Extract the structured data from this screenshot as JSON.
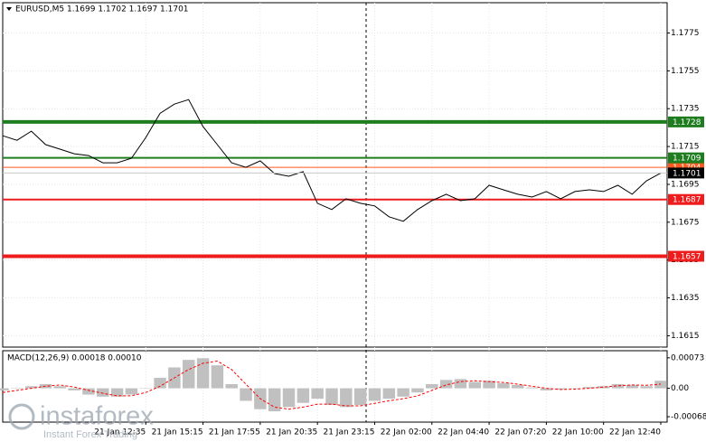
{
  "chart_data": [
    {
      "type": "line",
      "title": "EURUSD,M5  1.1699 1.1702 1.1697 1.1701",
      "categories": [
        null,
        null,
        null,
        null,
        null,
        null,
        null,
        null,
        null,
        null,
        "21 Jan 12:35",
        null,
        null,
        null,
        "21 Jan 15:15",
        null,
        null,
        null,
        "21 Jan 17:55",
        null,
        null,
        null,
        "21 Jan 20:35",
        null,
        null,
        null,
        "21 Jan 23:15",
        null,
        null,
        null,
        "22 Jan 02:00",
        null,
        null,
        null,
        "22 Jan 04:40",
        null,
        null,
        null,
        "22 Jan 07:20",
        null,
        null,
        null,
        "22 Jan 10:00",
        null,
        null,
        null,
        "22 Jan 12:40"
      ],
      "values": [
        1.17207,
        1.17183,
        1.17231,
        1.1716,
        1.17136,
        1.17112,
        1.17102,
        1.17064,
        1.17064,
        1.17088,
        1.17198,
        1.17326,
        1.17374,
        1.17398,
        1.17255,
        1.1716,
        1.17064,
        1.1704,
        1.17074,
        1.17007,
        1.16993,
        1.17017,
        1.1685,
        1.16817,
        1.16874,
        1.1685,
        1.16836,
        1.16779,
        1.16755,
        1.16817,
        1.16864,
        1.16898,
        1.16864,
        1.16874,
        1.16945,
        1.16921,
        1.16898,
        1.16883,
        1.16912,
        1.16874,
        1.16912,
        1.16921,
        1.16912,
        1.16945,
        1.16898,
        1.16969,
        1.1701
      ],
      "color": "#000000",
      "ylim": [
        1.1609,
        1.1791
      ],
      "yticks": [
        1.1775,
        1.1755,
        1.1735,
        1.1715,
        1.1695,
        1.1675,
        1.1655,
        1.1635,
        1.1615
      ],
      "grid": true,
      "levels": [
        {
          "value": 1.1704,
          "color": "#ff5a1e"
        },
        {
          "value": 1.1728,
          "color": "#1e7d1e"
        },
        {
          "value": 1.1709,
          "color": "#1e7d1e"
        },
        {
          "value": 1.1687,
          "color": "#ee1c1c"
        },
        {
          "value": 1.1657,
          "color": "#ee1c1c"
        }
      ],
      "last_price": 1.1701
    },
    {
      "type": "macd",
      "title": "MACD(12,26,9) 0.00018 0.00010",
      "values": [
        -5e-05,
        0,
        5e-05,
        0.0001,
        5e-05,
        -5e-05,
        -0.00015,
        -0.0002,
        -0.0002,
        -0.00015,
        0,
        0.00025,
        0.0005,
        0.00068,
        0.00072,
        0.00055,
        0.0001,
        -0.0003,
        -0.0005,
        -0.00055,
        -0.00045,
        -0.00035,
        -0.00025,
        -0.0004,
        -0.00045,
        -0.0004,
        -0.0003,
        -0.00025,
        -0.0002,
        -0.0001,
        0.0001,
        0.0002,
        0.00022,
        0.00015,
        0.00018,
        0.00012,
        8e-05,
        2e-05,
        -5e-05,
        -3e-05,
        0,
        3e-05,
        5e-05,
        0.0001,
        8e-05,
        5e-05,
        0.00018
      ],
      "color": "#c0c0c0",
      "signal": [
        -0.0001,
        -5e-05,
        0,
        5e-05,
        8e-05,
        3e-05,
        -5e-05,
        -0.00012,
        -0.00018,
        -0.00018,
        -0.0001,
        5e-05,
        0.00025,
        0.00045,
        0.0006,
        0.00065,
        0.00045,
        0.0001,
        -0.00025,
        -0.00045,
        -0.0005,
        -0.00045,
        -0.00038,
        -0.00038,
        -0.00042,
        -0.00042,
        -0.00036,
        -0.0003,
        -0.00025,
        -0.00018,
        -5e-05,
        8e-05,
        0.00016,
        0.00018,
        0.00016,
        0.00014,
        0.0001,
        5e-05,
        0,
        -3e-05,
        -2e-05,
        0,
        3e-05,
        6e-05,
        8e-05,
        7e-05,
        0.0001
      ],
      "signal_color": "#ff0000",
      "ylim": [
        -0.00081,
        0.0009
      ],
      "yticks": [
        0.00073,
        {
          "value": 0,
          "label": "0.00"
        },
        -0.00068
      ]
    }
  ],
  "watermark": {
    "brand": "instaforex",
    "tagline": "Instant Forex Trading"
  }
}
